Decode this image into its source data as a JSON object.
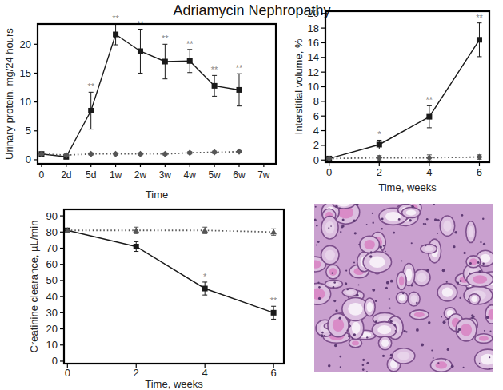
{
  "title": "Adriamycin Nephropathy",
  "chart_data": [
    {
      "type": "line",
      "y_label": "Urinary protein, mg/24 hours",
      "x_label": "Time",
      "categories": [
        "0",
        "2d",
        "5d",
        "1w",
        "2w",
        "3w",
        "4w",
        "5w",
        "6w",
        "7w"
      ],
      "ylim": [
        -0.7,
        23.5
      ],
      "yticks": [
        0,
        5,
        10,
        15,
        20
      ],
      "grid": false,
      "series": [
        {
          "color": "#1a1a1a",
          "marker": "square",
          "line_style": "solid",
          "values": [
            1.0,
            0.5,
            8.5,
            21.7,
            18.8,
            17.0,
            17.1,
            12.8,
            12.1,
            null
          ],
          "errors": [
            0.3,
            0.3,
            3.2,
            1.8,
            3.8,
            3.0,
            2.0,
            1.8,
            2.8,
            null
          ],
          "significance": [
            null,
            null,
            "**",
            "**",
            "**",
            "**",
            "**",
            "**",
            "**",
            null
          ]
        },
        {
          "color": "#555555",
          "marker": "diamond",
          "line_style": "dotted",
          "values": [
            1.0,
            0.8,
            1.0,
            1.0,
            1.0,
            1.0,
            1.2,
            1.3,
            1.4,
            null
          ],
          "errors": [
            0.2,
            0.2,
            0.2,
            0.2,
            0.2,
            0.2,
            0.2,
            0.2,
            0.2,
            null
          ]
        }
      ]
    },
    {
      "type": "line",
      "y_label": "Interstitial volume, %",
      "x_label": "Time, weeks",
      "x": [
        0,
        2,
        4,
        6
      ],
      "xlim": [
        -0.15,
        6.4
      ],
      "xticks": [
        0,
        2,
        4,
        6
      ],
      "ylim": [
        -0.3,
        20.3
      ],
      "yticks": [
        0,
        2,
        4,
        6,
        8,
        10,
        12,
        14,
        16,
        18,
        20
      ],
      "grid": false,
      "series": [
        {
          "color": "#1a1a1a",
          "marker": "square",
          "line_style": "solid",
          "values": [
            0.2,
            2.1,
            5.9,
            16.4
          ],
          "errors": [
            0.1,
            0.6,
            1.5,
            2.3
          ],
          "significance": [
            null,
            "*",
            "**",
            "**"
          ]
        },
        {
          "color": "#555555",
          "marker": "diamond",
          "line_style": "dotted",
          "values": [
            0.2,
            0.3,
            0.3,
            0.4
          ],
          "errors": [
            0.1,
            0.3,
            0.4,
            0.3
          ]
        }
      ]
    },
    {
      "type": "line",
      "y_label": "Creatinine clearance, µL/min",
      "x_label": "Time, weeks",
      "x": [
        0,
        2,
        4,
        6
      ],
      "xlim": [
        -0.1,
        6.3
      ],
      "xticks": [
        0,
        2,
        4,
        6
      ],
      "ylim": [
        -1.5,
        94
      ],
      "yticks": [
        0,
        10,
        20,
        30,
        40,
        50,
        60,
        70,
        80,
        90
      ],
      "grid": false,
      "series": [
        {
          "color": "#1a1a1a",
          "marker": "square",
          "line_style": "solid",
          "values": [
            81,
            71,
            45,
            30
          ],
          "errors": [
            0.5,
            3,
            4,
            4
          ],
          "significance": [
            null,
            null,
            "*",
            "**"
          ]
        },
        {
          "color": "#555555",
          "marker": "triangle",
          "line_style": "dotted",
          "values": [
            81,
            81,
            81,
            80
          ],
          "errors": [
            0.5,
            2,
            2,
            2
          ]
        }
      ]
    }
  ]
}
